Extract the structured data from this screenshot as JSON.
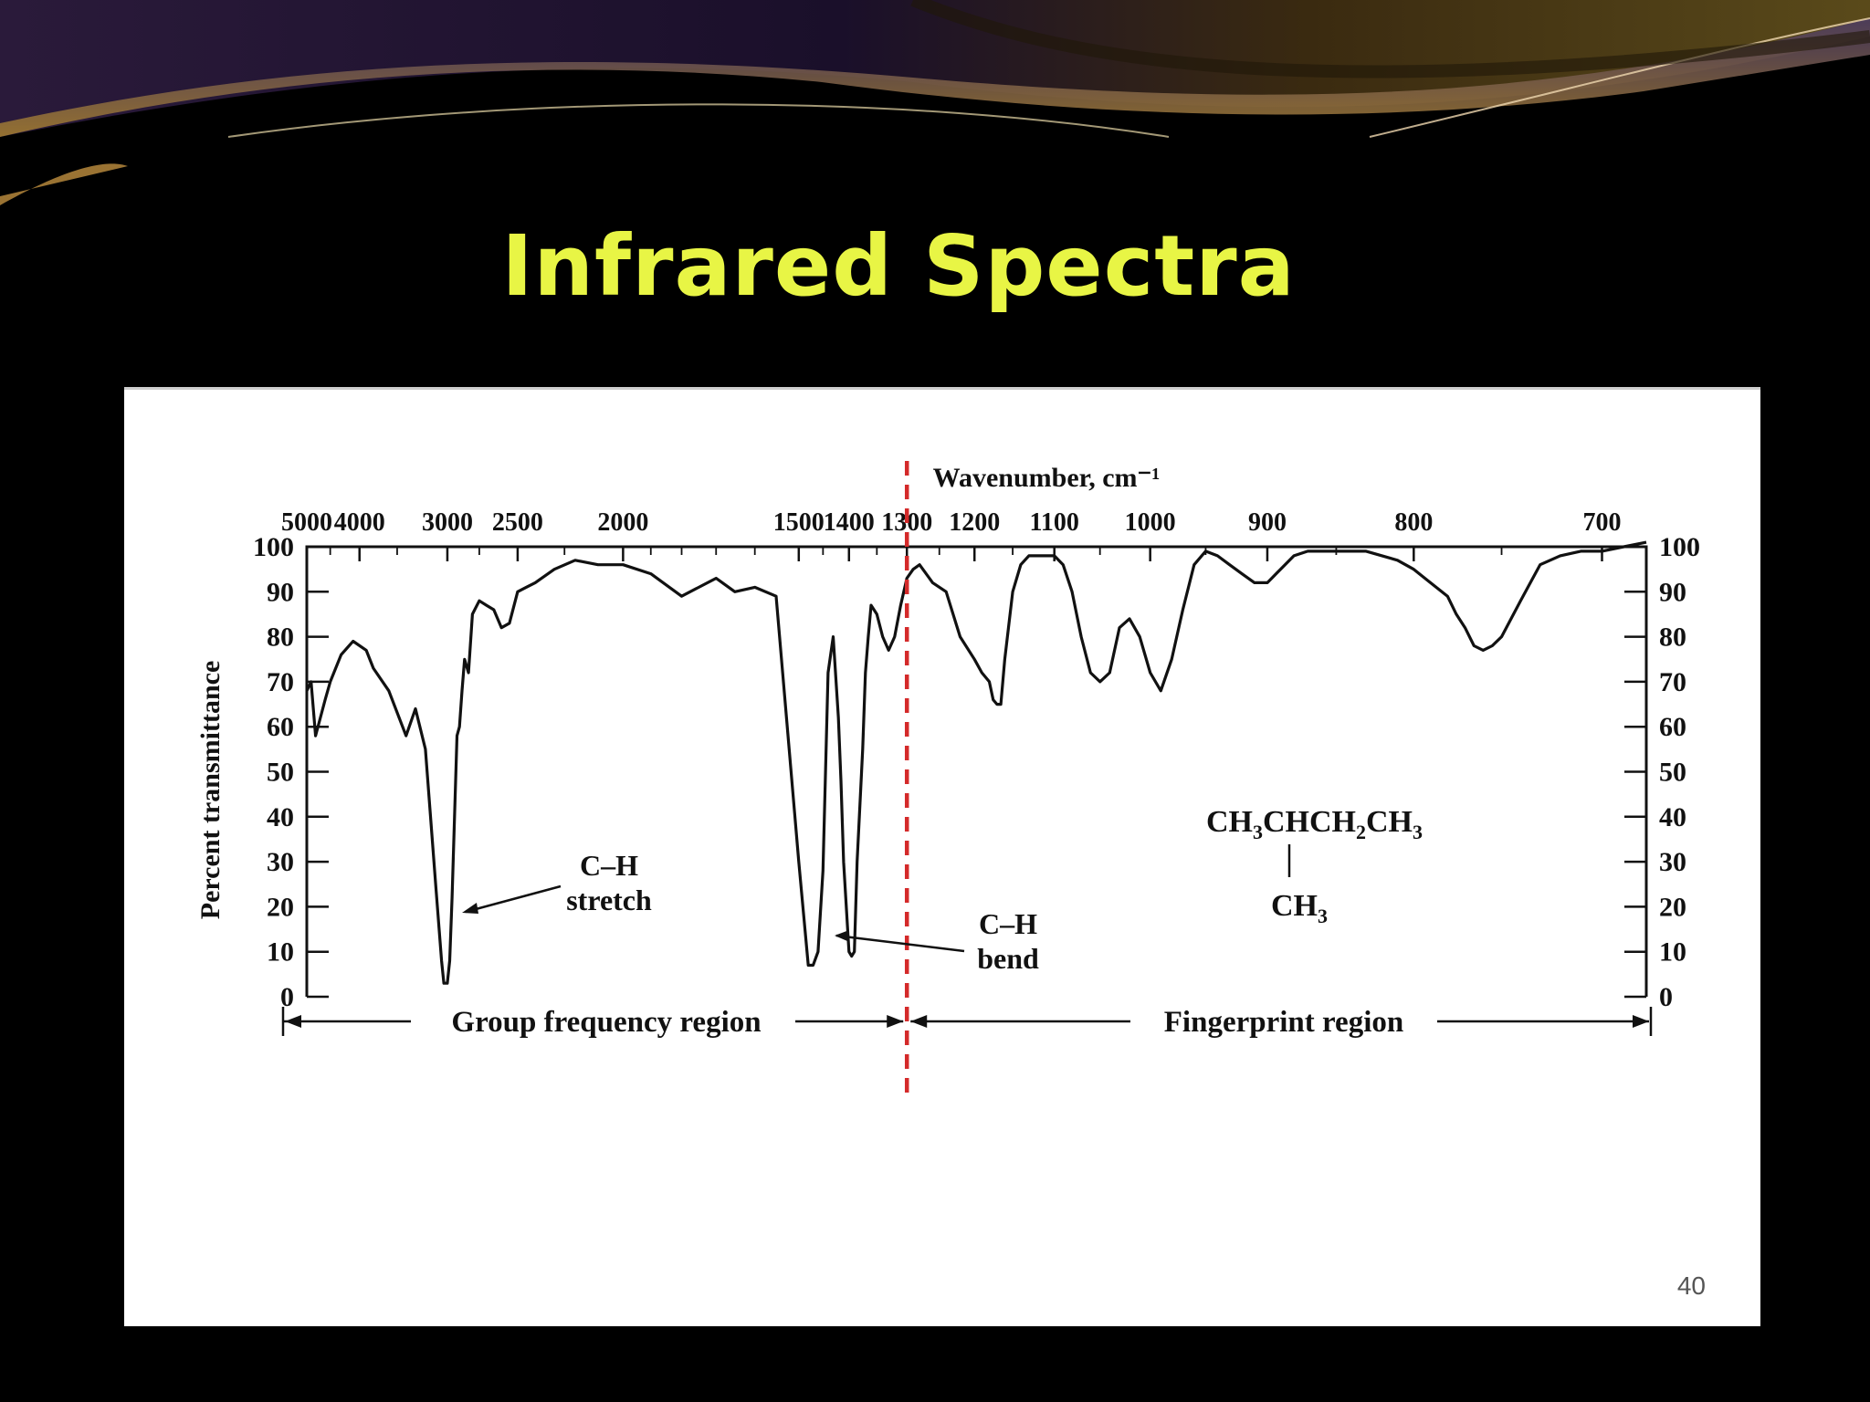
{
  "slide": {
    "title": "Infrared Spectra",
    "page_number": "40",
    "title_color": "#e8f545",
    "background": "#000000"
  },
  "chart_data": {
    "type": "line",
    "top_axis_label": "Wavenumber, cm⁻¹",
    "top_ticks": [
      "5000",
      "4000",
      "3000",
      "2500",
      "2000",
      "1500",
      "1400",
      "1300",
      "1200",
      "1100",
      "1000",
      "900",
      "800",
      "700"
    ],
    "ylabel": "Percent transmittance",
    "yticks": [
      "0",
      "10",
      "20",
      "30",
      "40",
      "50",
      "60",
      "70",
      "80",
      "90",
      "100"
    ],
    "ylim": [
      0,
      100
    ],
    "x_axis": "wavenumber, plotted reciprocally (as wavelength)",
    "series": [
      {
        "x": [
          5000,
          4900,
          4800,
          4600,
          4500,
          4300,
          4100,
          3900,
          3800,
          3600,
          3400,
          3300,
          3200,
          3100,
          3050,
          3030,
          3000,
          2980,
          2960,
          2940,
          2920,
          2900,
          2880,
          2860,
          2830,
          2800,
          2750,
          2700,
          2650,
          2600,
          2550,
          2500,
          2450,
          2400,
          2300,
          2200,
          2100,
          2000,
          1900,
          1800,
          1700,
          1650,
          1600,
          1550,
          1500,
          1480,
          1470,
          1460,
          1450,
          1440,
          1430,
          1420,
          1415,
          1410,
          1400,
          1395,
          1390,
          1385,
          1375,
          1370,
          1365,
          1360,
          1350,
          1340,
          1330,
          1320,
          1310,
          1300,
          1290,
          1280,
          1260,
          1240,
          1220,
          1200,
          1190,
          1180,
          1175,
          1170,
          1165,
          1160,
          1150,
          1140,
          1130,
          1120,
          1100,
          1090,
          1080,
          1070,
          1060,
          1050,
          1040,
          1030,
          1020,
          1010,
          1000,
          990,
          980,
          970,
          960,
          950,
          940,
          930,
          920,
          910,
          900,
          890,
          880,
          870,
          850,
          830,
          810,
          800,
          790,
          780,
          775,
          770,
          765,
          760,
          755,
          750,
          740,
          730,
          720,
          710,
          700,
          690,
          680
        ],
        "y": [
          68,
          70,
          58,
          66,
          70,
          76,
          79,
          77,
          73,
          68,
          58,
          64,
          55,
          24,
          8,
          3,
          3,
          8,
          22,
          40,
          58,
          60,
          68,
          75,
          72,
          85,
          88,
          87,
          86,
          82,
          83,
          90,
          91,
          92,
          95,
          97,
          96,
          96,
          94,
          89,
          93,
          90,
          91,
          89,
          30,
          7,
          7,
          10,
          28,
          72,
          80,
          62,
          48,
          30,
          10,
          9,
          10,
          30,
          55,
          72,
          80,
          87,
          85,
          80,
          77,
          80,
          87,
          93,
          95,
          96,
          92,
          90,
          80,
          75,
          72,
          70,
          66,
          65,
          65,
          75,
          90,
          96,
          98,
          98,
          98,
          96,
          90,
          80,
          72,
          70,
          72,
          82,
          84,
          80,
          72,
          68,
          75,
          86,
          96,
          99,
          98,
          96,
          94,
          92,
          92,
          95,
          98,
          99,
          99,
          99,
          97,
          95,
          92,
          89,
          85,
          82,
          78,
          77,
          78,
          80,
          88,
          96,
          98,
          99,
          99,
          100,
          101
        ]
      }
    ],
    "annotations": {
      "ch_stretch": [
        "C–H",
        "stretch"
      ],
      "ch_bend": [
        "C–H",
        "bend"
      ],
      "group_region": "Group frequency region",
      "fingerprint_region": "Fingerprint region",
      "formula_main": [
        "CH",
        "3",
        "CHCH",
        "2",
        "CH",
        "3"
      ],
      "formula_branch": [
        "CH",
        "3"
      ],
      "divider_at": 1300,
      "divider_color": "#d42a2a"
    }
  }
}
